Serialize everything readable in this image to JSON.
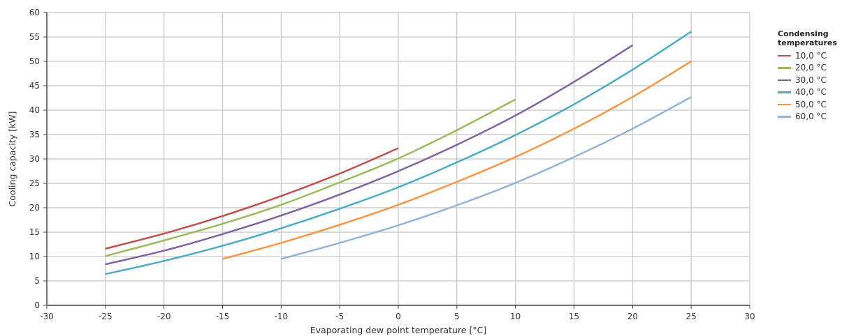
{
  "chart_data": {
    "type": "line",
    "title": "",
    "xlabel": "Evaporating dew point temperature [°C]",
    "ylabel": "Cooling capacity [kW]",
    "xlim": [
      -30,
      30
    ],
    "ylim": [
      0,
      60
    ],
    "x_ticks": [
      -30,
      -25,
      -20,
      -15,
      -10,
      -5,
      0,
      5,
      10,
      15,
      20,
      25,
      30
    ],
    "y_ticks": [
      0,
      5,
      10,
      15,
      20,
      25,
      30,
      35,
      40,
      45,
      50,
      55,
      60
    ],
    "grid": true,
    "legend_title": "Condensing temperatures",
    "legend_position": "right",
    "series": [
      {
        "name": "10,0 °C",
        "color": "#c0504d",
        "x": [
          -25,
          -20,
          -15,
          -10,
          -5,
          0
        ],
        "y": [
          11.6,
          14.7,
          18.3,
          22.4,
          27.0,
          32.2
        ]
      },
      {
        "name": "20,0 °C",
        "color": "#9bbb59",
        "x": [
          -25,
          -20,
          -15,
          -10,
          -5,
          0,
          5,
          10
        ],
        "y": [
          10.1,
          13.3,
          16.7,
          20.6,
          25.2,
          30.1,
          35.9,
          42.2
        ]
      },
      {
        "name": "30,0 °C",
        "color": "#8064a2",
        "x": [
          -25,
          -20,
          -15,
          -10,
          -5,
          0,
          5,
          10,
          15,
          20
        ],
        "y": [
          8.4,
          11.2,
          14.6,
          18.4,
          22.7,
          27.5,
          32.9,
          38.9,
          45.8,
          53.3
        ]
      },
      {
        "name": "40,0 °C",
        "color": "#4bacc6",
        "x": [
          -25,
          -20,
          -15,
          -10,
          -5,
          0,
          5,
          10,
          15,
          20,
          25
        ],
        "y": [
          6.4,
          9.1,
          12.2,
          15.8,
          19.8,
          24.2,
          29.3,
          34.9,
          41.2,
          48.3,
          56.1
        ]
      },
      {
        "name": "50,0 °C",
        "color": "#f79646",
        "x": [
          -15,
          -10,
          -5,
          0,
          5,
          10,
          15,
          20,
          25
        ],
        "y": [
          9.5,
          12.8,
          16.5,
          20.6,
          25.3,
          30.4,
          36.2,
          42.7,
          50.0
        ]
      },
      {
        "name": "60,0 °C",
        "color": "#95b3d7",
        "x": [
          -10,
          -5,
          0,
          5,
          10,
          15,
          20,
          25
        ],
        "y": [
          9.5,
          12.8,
          16.4,
          20.5,
          25.1,
          30.4,
          36.2,
          42.7
        ]
      }
    ]
  }
}
